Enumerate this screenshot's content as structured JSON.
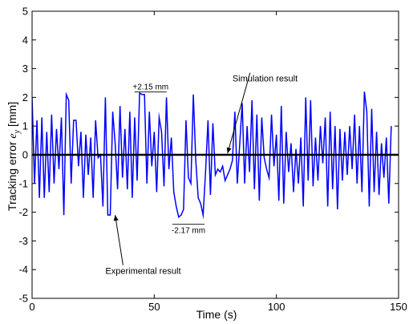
{
  "chart_data": {
    "type": "line",
    "title": "",
    "xlabel": "Time (s)",
    "ylabel_prefix": "Tracking error  ",
    "ylabel_symbol": "e",
    "ylabel_subscript": "y",
    "ylabel_unit": " [mm]",
    "xlim": [
      0,
      150
    ],
    "ylim": [
      -5,
      5
    ],
    "xticks": [
      0,
      50,
      100,
      150
    ],
    "yticks": [
      -5,
      -4,
      -3,
      -2,
      -1,
      0,
      1,
      2,
      3,
      4,
      5
    ],
    "grid": false,
    "series": [
      {
        "color": "#0000ff",
        "style": "solid",
        "x": [
          0,
          1,
          2,
          3,
          4,
          5,
          6,
          7,
          8,
          9,
          10,
          11,
          12,
          13,
          14,
          15,
          16,
          17,
          18,
          19,
          20,
          21,
          22,
          23,
          24,
          25,
          26,
          27,
          28,
          29,
          30,
          31,
          32,
          33,
          34,
          35,
          36,
          37,
          38,
          39,
          40,
          41,
          42,
          43,
          44,
          45,
          46,
          47,
          48,
          49,
          50,
          51,
          52,
          53,
          54,
          55,
          56,
          57,
          58,
          59,
          60,
          61,
          62,
          63,
          64,
          65,
          66,
          67,
          68,
          69,
          70,
          71,
          72,
          73,
          74,
          75,
          76,
          77,
          78,
          79,
          80,
          81,
          82,
          83,
          84,
          85,
          86,
          87,
          88,
          89,
          90,
          91,
          92,
          93,
          94,
          95,
          96,
          97,
          98,
          99,
          100,
          101,
          102,
          103,
          104,
          105,
          106,
          107,
          108,
          109,
          110,
          111,
          112,
          113,
          114,
          115,
          116,
          117,
          118,
          119,
          120,
          121,
          122,
          123,
          124,
          125,
          126,
          127,
          128,
          129,
          130,
          131,
          132,
          133,
          134,
          135,
          136,
          137,
          138,
          139,
          140,
          141,
          142,
          143,
          144,
          145,
          146,
          147
        ],
        "y": [
          2.0,
          -1.0,
          1.2,
          -1.5,
          1.3,
          -1.5,
          0.8,
          -1.3,
          1.4,
          -1.0,
          0.9,
          -0.5,
          1.3,
          -2.1,
          2.1,
          1.9,
          -1.0,
          1.2,
          1.2,
          -0.4,
          0.8,
          -1.5,
          0.7,
          -0.7,
          0.6,
          -1.5,
          1.2,
          -0.1,
          0.0,
          -1.8,
          2.0,
          -2.1,
          -2.1,
          1.5,
          0.4,
          -1.2,
          1.7,
          -0.8,
          0.9,
          -1.2,
          1.5,
          -1.5,
          1.3,
          -0.9,
          2.15,
          2.1,
          2.1,
          -1.0,
          1.5,
          -0.4,
          0.8,
          -1.3,
          1.3,
          0.8,
          -1.1,
          2.0,
          -0.5,
          0.6,
          -1.3,
          -1.8,
          -2.17,
          -2.1,
          -1.9,
          1.2,
          -0.8,
          -1.0,
          2.1,
          -0.2,
          -1.5,
          -1.7,
          -2.1,
          -0.6,
          1.2,
          -1.4,
          1.1,
          -0.7,
          -0.5,
          -0.6,
          -0.4,
          -0.9,
          -0.7,
          -0.5,
          -0.2,
          1.5,
          -1.0,
          0.4,
          1.8,
          -1.0,
          1.0,
          -0.6,
          1.9,
          -1.2,
          1.4,
          -1.6,
          1.3,
          -0.1,
          -0.5,
          -0.8,
          1.4,
          -0.4,
          0.7,
          -1.6,
          1.7,
          -1.7,
          0.8,
          -0.6,
          0.4,
          -1.3,
          0.2,
          -1.0,
          0.6,
          -1.8,
          2.0,
          -0.9,
          1.9,
          -1.1,
          0.6,
          -0.9,
          1.0,
          -0.3,
          1.3,
          -1.8,
          1.5,
          -1.2,
          1.0,
          -1.9,
          0.9,
          -0.9,
          0.8,
          -0.7,
          1.0,
          -0.5,
          1.4,
          -1.0,
          1.0,
          -1.3,
          2.2,
          1.5,
          -1.8,
          1.6,
          -1.3,
          0.8,
          -1.4,
          0.4,
          -0.8,
          0.6,
          -1.7,
          1.0
        ]
      },
      {
        "color": "#000000",
        "style": "thick",
        "x": [
          0,
          150
        ],
        "y": [
          0,
          0
        ]
      }
    ],
    "annotations": [
      {
        "text": "+2.15 mm",
        "x": 45,
        "y": 2.15,
        "type": "bracket-label",
        "label_x": 48.5,
        "label_y": 2.27
      },
      {
        "text": "-2.17 mm",
        "x": 61,
        "y": -2.17,
        "type": "bracket-label",
        "label_x": 64,
        "label_y": -2.45
      },
      {
        "text": "Simulation result",
        "x": 82,
        "y": 2.55,
        "type": "arrow-label",
        "tip_x": 80,
        "tip_y": 0.05
      },
      {
        "text": "Experimental result",
        "x": 30,
        "y": -4.15,
        "type": "arrow-label",
        "tip_x": 34,
        "tip_y": -2.1
      }
    ]
  }
}
